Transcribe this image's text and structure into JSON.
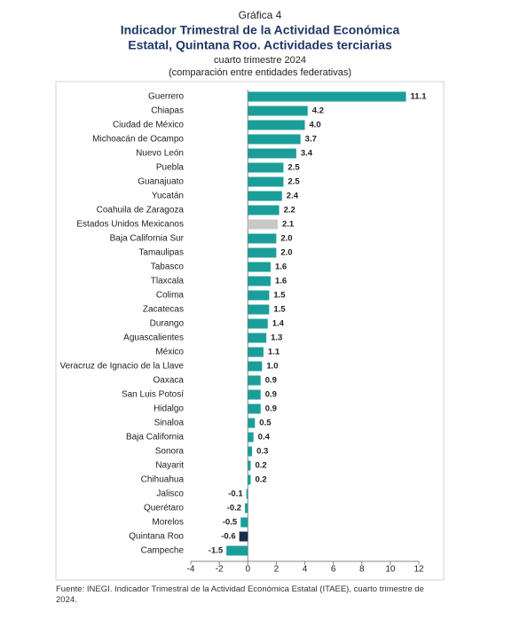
{
  "chart_data": {
    "type": "barh",
    "chart_label": "Gráfica 4",
    "title": [
      "Indicador Trimestral de la Actividad Económica",
      "Estatal, Quintana Roo. Actividades terciarias"
    ],
    "subtitle": [
      "cuarto trimestre 2024",
      "(comparación entre entidades federativas)"
    ],
    "categories": [
      "Guerrero",
      "Chiapas",
      "Ciudad de México",
      "Michoacán de Ocampo",
      "Nuevo León",
      "Puebla",
      "Guanajuato",
      "Yucatán",
      "Coahuila de Zaragoza",
      "Estados Unidos Mexicanos",
      "Baja California Sur",
      "Tamaulipas",
      "Tabasco",
      "Tlaxcala",
      "Colima",
      "Zacatecas",
      "Durango",
      "Aguascalientes",
      "México",
      "Veracruz de Ignacio de la Llave",
      "Oaxaca",
      "San Luis Potosí",
      "Hidalgo",
      "Sinaloa",
      "Baja California",
      "Sonora",
      "Nayarit",
      "Chihuahua",
      "Jalisco",
      "Querétaro",
      "Morelos",
      "Quintana Roo",
      "Campeche"
    ],
    "values": [
      11.1,
      4.2,
      4.0,
      3.7,
      3.4,
      2.5,
      2.5,
      2.4,
      2.2,
      2.1,
      2.0,
      2.0,
      1.6,
      1.6,
      1.5,
      1.5,
      1.4,
      1.3,
      1.1,
      1.0,
      0.9,
      0.9,
      0.9,
      0.5,
      0.4,
      0.3,
      0.2,
      0.2,
      -0.1,
      -0.2,
      -0.5,
      -0.6,
      -1.5
    ],
    "value_labels": [
      "11.1",
      "4.2",
      "4.0",
      "3.7",
      "3.4",
      "2.5",
      "2.5",
      "2.4",
      "2.2",
      "2.1",
      "2.0",
      "2.0",
      "1.6",
      "1.6",
      "1.5",
      "1.5",
      "1.4",
      "1.3",
      "1.1",
      "1.0",
      "0.9",
      "0.9",
      "0.9",
      "0.5",
      "0.4",
      "0.3",
      "0.2",
      "0.2",
      "-0.1",
      "-0.2",
      "-0.5",
      "-0.6",
      "-1.5"
    ],
    "colors": [
      "#1b9e9a",
      "#1b9e9a",
      "#1b9e9a",
      "#1b9e9a",
      "#1b9e9a",
      "#1b9e9a",
      "#1b9e9a",
      "#1b9e9a",
      "#1b9e9a",
      "#c8c8c8",
      "#1b9e9a",
      "#1b9e9a",
      "#1b9e9a",
      "#1b9e9a",
      "#1b9e9a",
      "#1b9e9a",
      "#1b9e9a",
      "#1b9e9a",
      "#1b9e9a",
      "#1b9e9a",
      "#1b9e9a",
      "#1b9e9a",
      "#1b9e9a",
      "#1b9e9a",
      "#1b9e9a",
      "#1b9e9a",
      "#1b9e9a",
      "#1b9e9a",
      "#1b9e9a",
      "#1b9e9a",
      "#1b9e9a",
      "#1b2f4e",
      "#1b9e9a"
    ],
    "xlim": [
      -4,
      12
    ],
    "xticks": [
      -4,
      -2,
      0,
      2,
      4,
      6,
      8,
      10,
      12
    ],
    "source": "Fuente: INEGI. Indicador Trimestral de la Actividad Económica Estatal (ITAEE), cuarto trimestre de 2024."
  }
}
